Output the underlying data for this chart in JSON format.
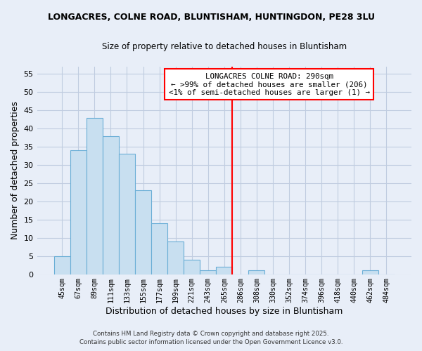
{
  "title": "LONGACRES, COLNE ROAD, BLUNTISHAM, HUNTINGDON, PE28 3LU",
  "subtitle": "Size of property relative to detached houses in Bluntisham",
  "xlabel": "Distribution of detached houses by size in Bluntisham",
  "ylabel": "Number of detached properties",
  "bin_labels": [
    "45sqm",
    "67sqm",
    "89sqm",
    "111sqm",
    "133sqm",
    "155sqm",
    "177sqm",
    "199sqm",
    "221sqm",
    "243sqm",
    "265sqm",
    "286sqm",
    "308sqm",
    "330sqm",
    "352sqm",
    "374sqm",
    "396sqm",
    "418sqm",
    "440sqm",
    "462sqm",
    "484sqm"
  ],
  "bar_heights": [
    5,
    34,
    43,
    38,
    33,
    23,
    14,
    9,
    4,
    1,
    2,
    0,
    1,
    0,
    0,
    0,
    0,
    0,
    0,
    1,
    0
  ],
  "bar_color": "#c8dff0",
  "bar_edge_color": "#6aaed6",
  "vline_x_index": 11,
  "vline_color": "red",
  "annotation_title": "LONGACRES COLNE ROAD: 290sqm",
  "annotation_line1": "← >99% of detached houses are smaller (206)",
  "annotation_line2": "<1% of semi-detached houses are larger (1) →",
  "ylim": [
    0,
    57
  ],
  "yticks": [
    0,
    5,
    10,
    15,
    20,
    25,
    30,
    35,
    40,
    45,
    50,
    55
  ],
  "footnote1": "Contains HM Land Registry data © Crown copyright and database right 2025.",
  "footnote2": "Contains public sector information licensed under the Open Government Licence v3.0.",
  "bg_color": "#e8eef8",
  "grid_color": "#c0cce0"
}
